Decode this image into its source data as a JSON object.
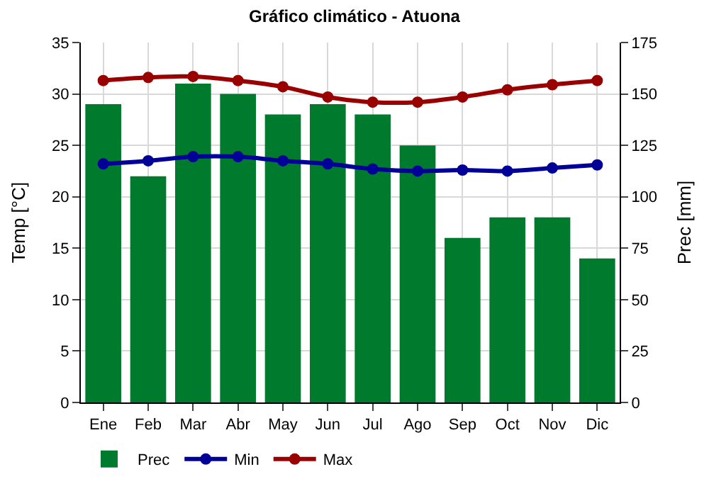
{
  "chart_data": {
    "type": "bar",
    "title": "Gráfico climático - Atuona",
    "ylabel": "Temp [°C]",
    "y2label": "Prec [mm]",
    "categories": [
      "Ene",
      "Feb",
      "Mar",
      "Abr",
      "May",
      "Jun",
      "Jul",
      "Ago",
      "Sep",
      "Oct",
      "Nov",
      "Dic"
    ],
    "series": [
      {
        "name": "Prec",
        "axis": "y2",
        "color": "#007b2e",
        "values": [
          145,
          110,
          155,
          150,
          140,
          145,
          140,
          125,
          80,
          90,
          90,
          70
        ]
      },
      {
        "name": "Min",
        "type": "line",
        "color": "#000099",
        "values": [
          23.2,
          23.5,
          23.9,
          23.9,
          23.5,
          23.2,
          22.7,
          22.5,
          22.6,
          22.5,
          22.8,
          23.1
        ]
      },
      {
        "name": "Max",
        "type": "line",
        "color": "#990000",
        "values": [
          31.3,
          31.6,
          31.7,
          31.3,
          30.7,
          29.7,
          29.2,
          29.2,
          29.7,
          30.4,
          30.9,
          31.3
        ]
      }
    ],
    "ylim": [
      0,
      35
    ],
    "yticks": [
      0,
      5,
      10,
      15,
      20,
      25,
      30,
      35
    ],
    "y2lim": [
      0,
      175
    ],
    "y2ticks": [
      0,
      25,
      50,
      75,
      100,
      125,
      150,
      175
    ],
    "grid": true,
    "legend": "bottom left",
    "marker": "circle"
  }
}
